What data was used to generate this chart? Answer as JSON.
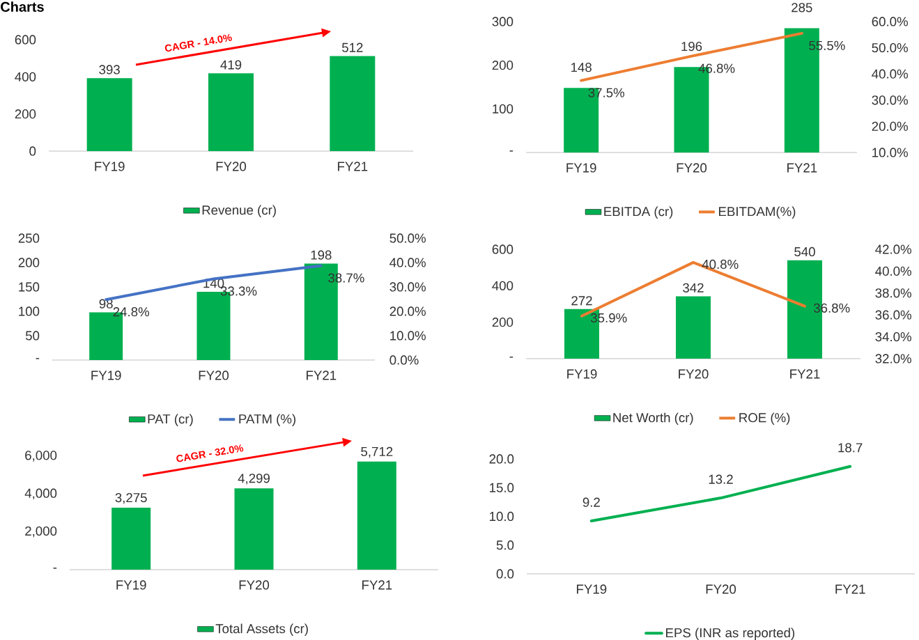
{
  "chart_data": [
    {
      "type": "bar",
      "title": "Charts",
      "categories": [
        "FY19",
        "FY20",
        "FY21"
      ],
      "ylim": [
        0,
        600
      ],
      "yticks": [
        0,
        200,
        400,
        600
      ],
      "legend": "bottom",
      "annotations": [
        "CAGR - 14.0%"
      ],
      "series": [
        {
          "name": "Revenue (cr)",
          "color": "#00b050",
          "values": [
            393,
            419,
            512
          ],
          "value_labels": [
            "393",
            "419",
            "512"
          ]
        }
      ]
    },
    {
      "type": "bar",
      "categories": [
        "FY19",
        "FY20",
        "FY21"
      ],
      "ylim": [
        0,
        300
      ],
      "yticks": [
        {
          "value": 0,
          "label": "-"
        },
        100,
        200,
        300
      ],
      "y2lim": [
        10,
        60
      ],
      "y2ticks": [
        {
          "value": 10,
          "label": "10.0%"
        },
        {
          "value": 20,
          "label": "20.0%"
        },
        {
          "value": 30,
          "label": "30.0%"
        },
        {
          "value": 40,
          "label": "40.0%"
        },
        {
          "value": 50,
          "label": "50.0%"
        },
        {
          "value": 60,
          "label": "60.0%"
        }
      ],
      "legend": "bottom",
      "series": [
        {
          "name": "EBITDA (cr)",
          "color": "#00b050",
          "values": [
            148,
            196,
            285
          ],
          "value_labels": [
            "148",
            "196",
            "285"
          ]
        },
        {
          "name": "EBITDAM(%)",
          "type": "line",
          "axis": "y2",
          "color": "#ed7d31",
          "values": [
            37.5,
            46.8,
            55.5
          ],
          "value_labels": [
            "37.5%",
            "46.8%",
            "55.5%"
          ]
        }
      ]
    },
    {
      "type": "bar",
      "categories": [
        "FY19",
        "FY20",
        "FY21"
      ],
      "ylim": [
        0,
        250
      ],
      "yticks": [
        {
          "value": 0,
          "label": "-"
        },
        50,
        100,
        150,
        200,
        250
      ],
      "y2lim": [
        0,
        50
      ],
      "y2ticks": [
        {
          "value": 0,
          "label": "0.0%"
        },
        {
          "value": 10,
          "label": "10.0%"
        },
        {
          "value": 20,
          "label": "20.0%"
        },
        {
          "value": 30,
          "label": "30.0%"
        },
        {
          "value": 40,
          "label": "40.0%"
        },
        {
          "value": 50,
          "label": "50.0%"
        }
      ],
      "legend": "bottom",
      "series": [
        {
          "name": "PAT (cr)",
          "color": "#00b050",
          "values": [
            98,
            140,
            198
          ],
          "value_labels": [
            "98",
            "140",
            "198"
          ]
        },
        {
          "name": "PATM (%)",
          "type": "line",
          "axis": "y2",
          "color": "#4472c4",
          "values": [
            24.8,
            33.3,
            38.7
          ],
          "value_labels": [
            "24.8%",
            "33.3%",
            "38.7%"
          ]
        }
      ]
    },
    {
      "type": "bar",
      "categories": [
        "FY19",
        "FY20",
        "FY21"
      ],
      "ylim": [
        0,
        600
      ],
      "yticks": [
        {
          "value": 0,
          "label": "-"
        },
        200,
        400,
        600
      ],
      "y2lim": [
        32,
        42
      ],
      "y2ticks": [
        {
          "value": 32,
          "label": "32.0%"
        },
        {
          "value": 34,
          "label": "34.0%"
        },
        {
          "value": 36,
          "label": "36.0%"
        },
        {
          "value": 38,
          "label": "38.0%"
        },
        {
          "value": 40,
          "label": "40.0%"
        },
        {
          "value": 42,
          "label": "42.0%"
        }
      ],
      "legend": "bottom",
      "series": [
        {
          "name": "Net Worth (cr)",
          "color": "#00b050",
          "values": [
            272,
            342,
            540
          ],
          "value_labels": [
            "272",
            "342",
            "540"
          ]
        },
        {
          "name": "ROE (%)",
          "type": "line",
          "axis": "y2",
          "color": "#ed7d31",
          "values": [
            35.9,
            40.8,
            36.8
          ],
          "value_labels": [
            "35.9%",
            "40.8%",
            "36.8%"
          ]
        }
      ]
    },
    {
      "type": "bar",
      "categories": [
        "FY19",
        "FY20",
        "FY21"
      ],
      "ylim": [
        0,
        6000
      ],
      "yticks": [
        {
          "value": 0,
          "label": "-"
        },
        {
          "value": 2000,
          "label": "2,000"
        },
        {
          "value": 4000,
          "label": "4,000"
        },
        {
          "value": 6000,
          "label": "6,000"
        }
      ],
      "legend": "bottom",
      "annotations": [
        "CAGR - 32.0%"
      ],
      "series": [
        {
          "name": "Total Assets (cr)",
          "color": "#00b050",
          "values": [
            3275,
            4299,
            5712
          ],
          "value_labels": [
            "3,275",
            "4,299",
            "5,712"
          ]
        }
      ]
    },
    {
      "type": "line",
      "categories": [
        "FY19",
        "FY20",
        "FY21"
      ],
      "ylim": [
        0,
        20
      ],
      "yticks": [
        {
          "value": 0,
          "label": "0.0"
        },
        {
          "value": 5,
          "label": "5.0"
        },
        {
          "value": 10,
          "label": "10.0"
        },
        {
          "value": 15,
          "label": "15.0"
        },
        {
          "value": 20,
          "label": "20.0"
        }
      ],
      "legend": "bottom",
      "series": [
        {
          "name": "EPS (INR as reported)",
          "color": "#00b050",
          "values": [
            9.2,
            13.2,
            18.7
          ],
          "value_labels": [
            "9.2",
            "13.2",
            "18.7"
          ]
        }
      ]
    }
  ]
}
